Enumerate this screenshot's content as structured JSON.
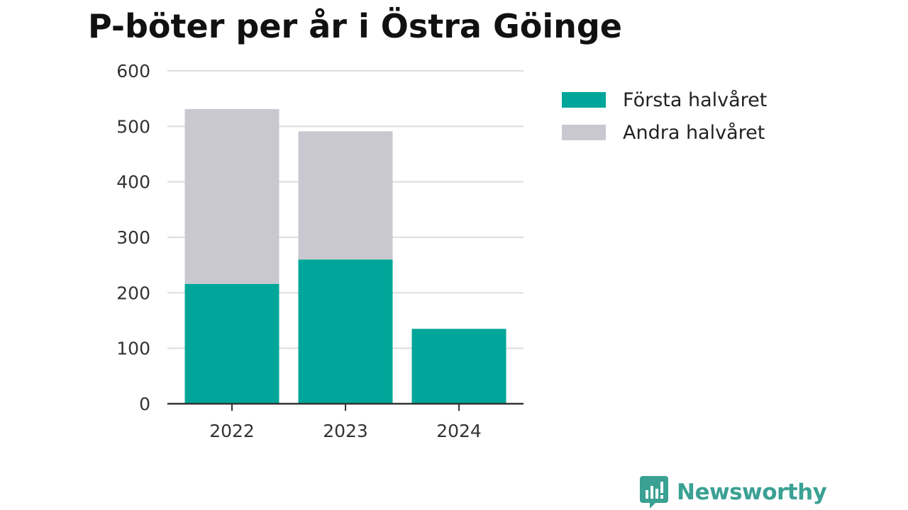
{
  "title": "P-böter per år i Östra Göinge",
  "brand": {
    "name": "Newsworthy",
    "icon": "newsworthy-logo-icon",
    "color": "#3aa193"
  },
  "colors": {
    "first_half": "#00a699",
    "second_half": "#c9c8d0",
    "grid": "#dddddd",
    "axis": "#333333"
  },
  "legend": {
    "placement": "right",
    "items": [
      {
        "label": "Första halvåret",
        "color": "#00a699"
      },
      {
        "label": "Andra halvåret",
        "color": "#c9c8d0"
      }
    ]
  },
  "chart_data": {
    "type": "bar",
    "stacked": true,
    "title": "P-böter per år i Östra Göinge",
    "xlabel": "",
    "ylabel": "",
    "categories": [
      "2022",
      "2023",
      "2024"
    ],
    "series": [
      {
        "name": "Första halvåret",
        "values": [
          216,
          260,
          135
        ],
        "color": "#00a699"
      },
      {
        "name": "Andra halvåret",
        "values": [
          315,
          231,
          0
        ],
        "color": "#c9c8d0"
      }
    ],
    "ylim": [
      0,
      600
    ],
    "yticks": [
      0,
      100,
      200,
      300,
      400,
      500,
      600
    ],
    "grid": true
  }
}
